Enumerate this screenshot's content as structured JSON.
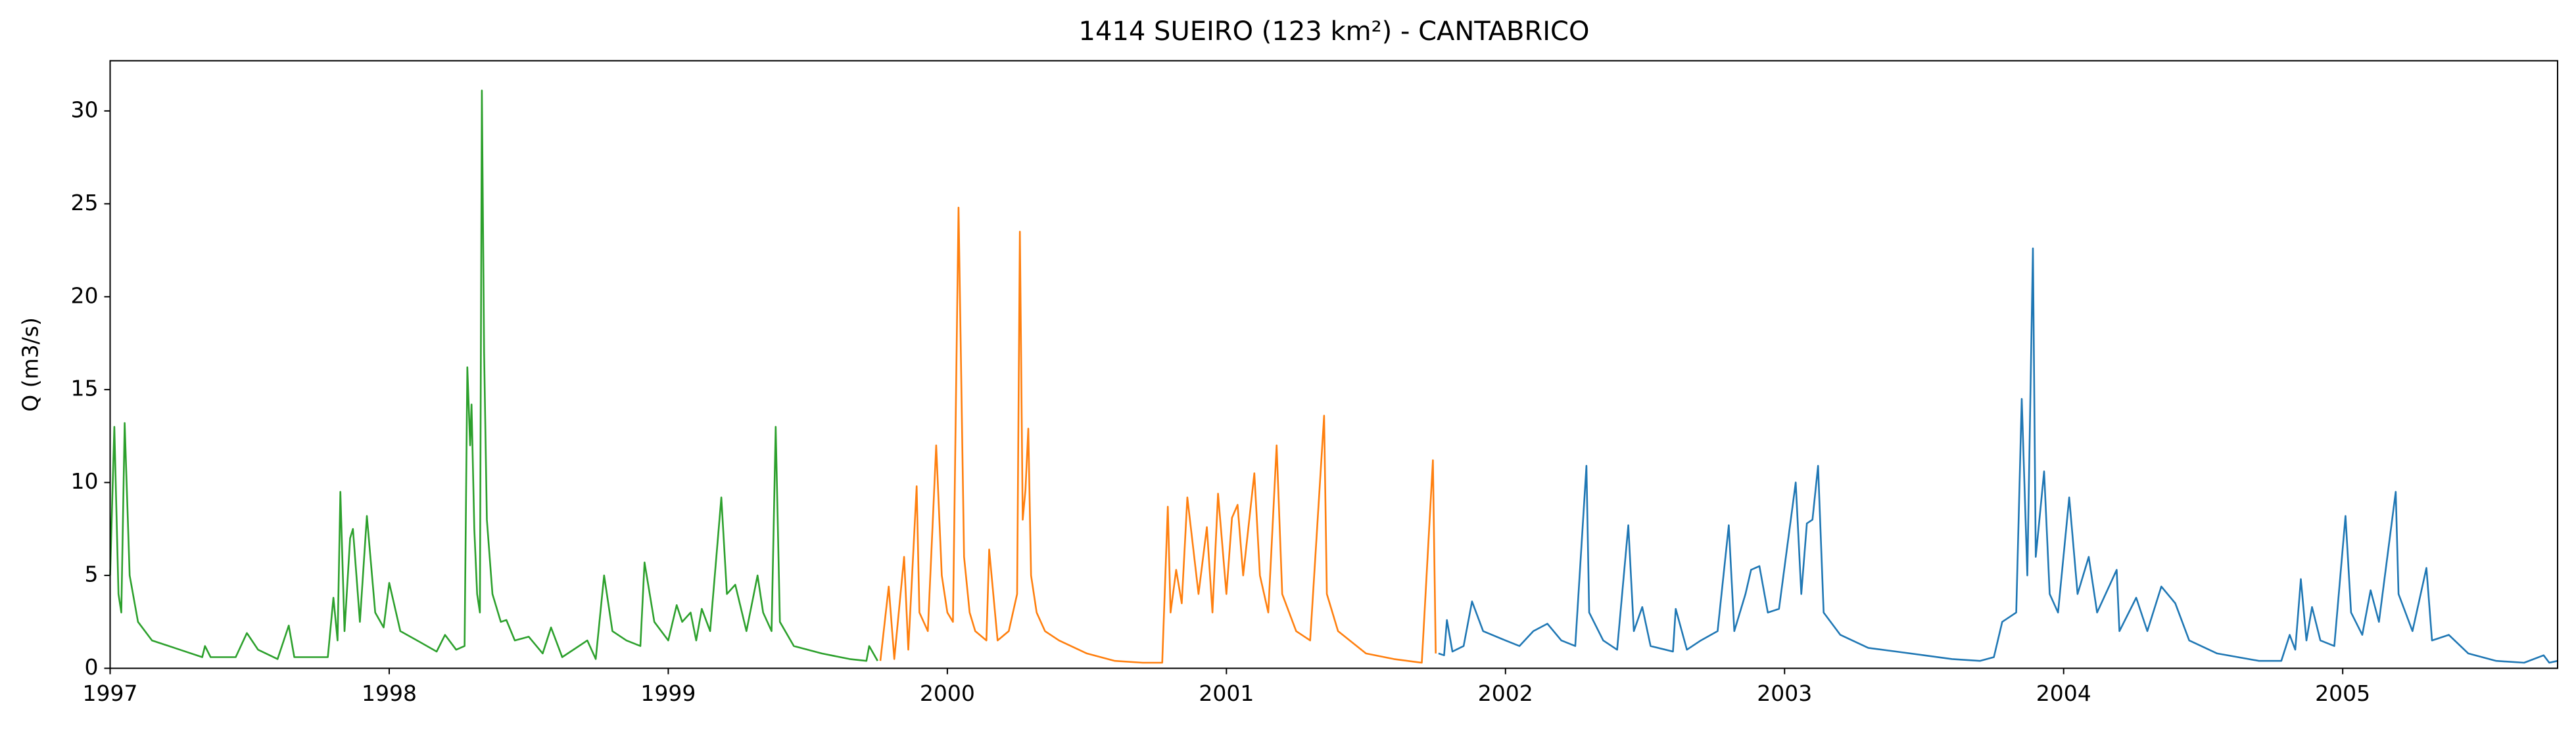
{
  "chart_data": {
    "type": "line",
    "title": "1414 SUEIRO (123 km²) - CANTABRICO",
    "y_label": "Q (m3/s)",
    "xlim": [
      1997,
      2005.77
    ],
    "xticks": [
      1997,
      1998,
      1999,
      2000,
      2001,
      2002,
      2003,
      2004,
      2005
    ],
    "ylim": [
      0,
      32.7
    ],
    "yticks": [
      0,
      5,
      10,
      15,
      20,
      25,
      30
    ],
    "grid": false,
    "series": [
      {
        "color": "#2ca02c",
        "x": [
          1997.0,
          1997.015,
          1997.03,
          1997.04,
          1997.052,
          1997.07,
          1997.1,
          1997.15,
          1997.25,
          1997.33,
          1997.34,
          1997.36,
          1997.45,
          1997.49,
          1997.53,
          1997.6,
          1997.64,
          1997.66,
          1997.78,
          1997.8,
          1997.815,
          1997.825,
          1997.84,
          1997.86,
          1997.87,
          1997.895,
          1997.92,
          1997.95,
          1997.98,
          1998.0,
          1998.04,
          1998.1,
          1998.17,
          1998.2,
          1998.24,
          1998.27,
          1998.28,
          1998.29,
          1998.295,
          1998.305,
          1998.315,
          1998.325,
          1998.332,
          1998.34,
          1998.35,
          1998.37,
          1998.4,
          1998.42,
          1998.45,
          1998.5,
          1998.55,
          1998.58,
          1998.62,
          1998.71,
          1998.74,
          1998.77,
          1998.8,
          1998.85,
          1998.9,
          1998.915,
          1998.95,
          1999.0,
          1999.03,
          1999.05,
          1999.08,
          1999.1,
          1999.12,
          1999.15,
          1999.17,
          1999.19,
          1999.21,
          1999.24,
          1999.28,
          1999.32,
          1999.34,
          1999.37,
          1999.385,
          1999.4,
          1999.45,
          1999.55,
          1999.65,
          1999.71,
          1999.72,
          1999.75
        ],
        "values": [
          5,
          13,
          4,
          3,
          13.2,
          5,
          2.5,
          1.5,
          1,
          0.6,
          1.2,
          0.6,
          0.6,
          1.9,
          1,
          0.5,
          2.3,
          0.6,
          0.6,
          3.8,
          1.5,
          9.5,
          2,
          7,
          7.5,
          2.5,
          8.2,
          3,
          2.2,
          4.6,
          2,
          1.5,
          0.9,
          1.8,
          1,
          1.2,
          16.2,
          12,
          14.2,
          7.5,
          4,
          3,
          31.1,
          17,
          8,
          4,
          2.5,
          2.6,
          1.5,
          1.7,
          0.8,
          2.2,
          0.6,
          1.5,
          0.5,
          5,
          2,
          1.5,
          1.2,
          5.7,
          2.5,
          1.5,
          3.4,
          2.5,
          3,
          1.5,
          3.2,
          2,
          5.6,
          9.2,
          4,
          4.5,
          2,
          5,
          3,
          2,
          13,
          2.5,
          1.2,
          0.8,
          0.5,
          0.4,
          1.2,
          0.4
        ]
      },
      {
        "color": "#ff7f0e",
        "x": [
          1999.76,
          1999.79,
          1999.81,
          1999.845,
          1999.86,
          1999.89,
          1999.9,
          1999.93,
          1999.96,
          1999.98,
          2000.0,
          2000.02,
          2000.04,
          2000.06,
          2000.08,
          2000.1,
          2000.14,
          2000.15,
          2000.18,
          2000.22,
          2000.25,
          2000.26,
          2000.27,
          2000.28,
          2000.29,
          2000.3,
          2000.32,
          2000.35,
          2000.4,
          2000.5,
          2000.6,
          2000.7,
          2000.77,
          2000.79,
          2000.8,
          2000.82,
          2000.84,
          2000.86,
          2000.9,
          2000.93,
          2000.95,
          2000.97,
          2001.0,
          2001.02,
          2001.04,
          2001.06,
          2001.1,
          2001.12,
          2001.15,
          2001.18,
          2001.2,
          2001.25,
          2001.3,
          2001.35,
          2001.36,
          2001.4,
          2001.5,
          2001.6,
          2001.7,
          2001.74,
          2001.75
        ],
        "values": [
          0.4,
          4.4,
          0.5,
          6,
          1,
          9.8,
          3,
          2,
          12,
          5,
          3,
          2.5,
          24.8,
          6,
          3,
          2,
          1.5,
          6.4,
          1.5,
          2,
          4,
          23.5,
          8,
          9.6,
          12.9,
          5,
          3,
          2,
          1.5,
          0.8,
          0.4,
          0.3,
          0.3,
          8.7,
          3,
          5.3,
          3.5,
          9.2,
          4,
          7.6,
          3,
          9.4,
          4,
          8.1,
          8.8,
          5,
          10.5,
          5,
          3,
          12,
          4,
          2,
          1.5,
          13.6,
          4,
          2,
          0.8,
          0.5,
          0.3,
          11.2,
          0.8
        ]
      },
      {
        "color": "#1f77b4",
        "x": [
          2001.76,
          2001.78,
          2001.79,
          2001.81,
          2001.85,
          2001.88,
          2001.92,
          2002.0,
          2002.05,
          2002.1,
          2002.15,
          2002.2,
          2002.25,
          2002.29,
          2002.3,
          2002.35,
          2002.4,
          2002.44,
          2002.46,
          2002.49,
          2002.52,
          2002.6,
          2002.61,
          2002.65,
          2002.7,
          2002.76,
          2002.8,
          2002.82,
          2002.86,
          2002.88,
          2002.91,
          2002.94,
          2002.98,
          2003.04,
          2003.06,
          2003.08,
          2003.1,
          2003.12,
          2003.14,
          2003.2,
          2003.3,
          2003.4,
          2003.5,
          2003.6,
          2003.7,
          2003.75,
          2003.78,
          2003.83,
          2003.85,
          2003.87,
          2003.89,
          2003.9,
          2003.91,
          2003.93,
          2003.95,
          2003.98,
          2004.02,
          2004.05,
          2004.09,
          2004.12,
          2004.19,
          2004.2,
          2004.26,
          2004.3,
          2004.35,
          2004.4,
          2004.45,
          2004.55,
          2004.7,
          2004.78,
          2004.81,
          2004.83,
          2004.85,
          2004.87,
          2004.89,
          2004.92,
          2004.97,
          2005.01,
          2005.03,
          2005.07,
          2005.1,
          2005.13,
          2005.19,
          2005.2,
          2005.25,
          2005.3,
          2005.32,
          2005.38,
          2005.45,
          2005.55,
          2005.65,
          2005.72,
          2005.74,
          2005.77
        ],
        "values": [
          0.8,
          0.7,
          2.6,
          0.9,
          1.2,
          3.6,
          2,
          1.5,
          1.2,
          2,
          2.4,
          1.5,
          1.2,
          10.9,
          3,
          1.5,
          1,
          7.7,
          2,
          3.3,
          1.2,
          0.9,
          3.2,
          1,
          1.5,
          2,
          7.7,
          2,
          4,
          5.3,
          5.5,
          3,
          3.2,
          10,
          4,
          7.8,
          8,
          10.9,
          3,
          1.8,
          1.1,
          0.9,
          0.7,
          0.5,
          0.4,
          0.6,
          2.5,
          3,
          14.5,
          5,
          22.6,
          6,
          7.5,
          10.6,
          4,
          3,
          9.2,
          4,
          6,
          3,
          5.3,
          2,
          3.8,
          2,
          4.4,
          3.5,
          1.5,
          0.8,
          0.4,
          0.4,
          1.8,
          1,
          4.8,
          1.5,
          3.3,
          1.5,
          1.2,
          8.2,
          3,
          1.8,
          4.2,
          2.5,
          9.5,
          4,
          2,
          5.4,
          1.5,
          1.8,
          0.8,
          0.4,
          0.3,
          0.7,
          0.3,
          0.4
        ]
      }
    ]
  }
}
